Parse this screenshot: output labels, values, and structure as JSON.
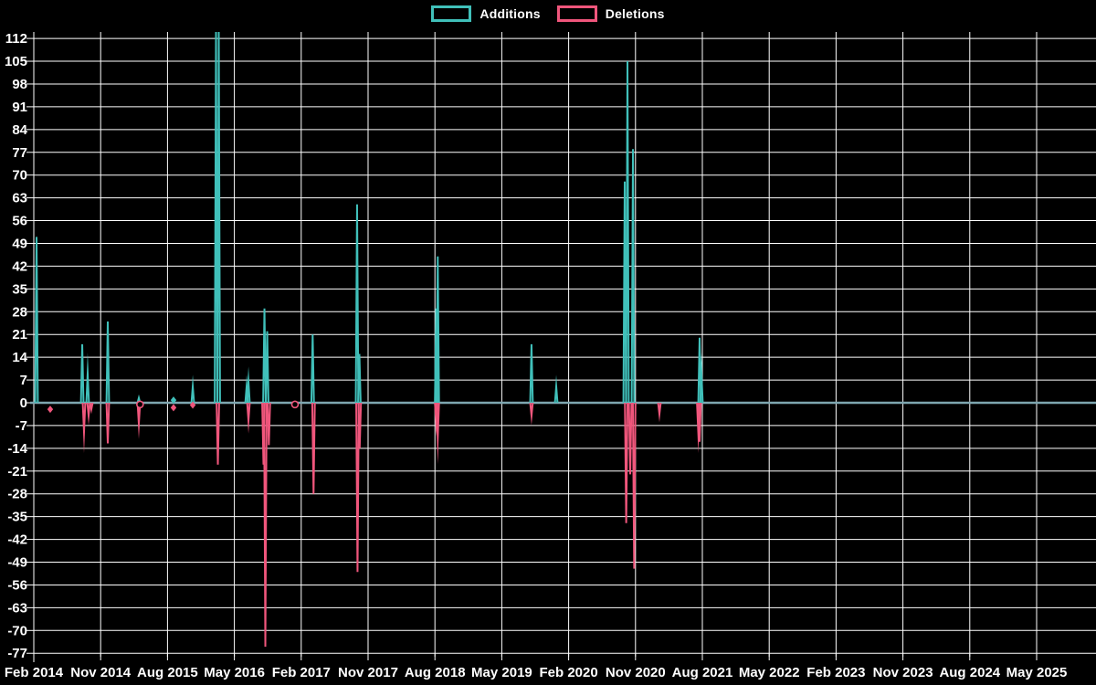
{
  "legend": {
    "additions_label": "Additions",
    "deletions_label": "Deletions"
  },
  "colors": {
    "additions": "#40c0ba",
    "deletions": "#f0567c",
    "zero_line": "#7ea6b0",
    "grid": "#ffffff",
    "background": "#000000",
    "text": "#ffffff"
  },
  "chart_data": {
    "type": "line",
    "title": "",
    "description": "Code additions (teal) and deletions (pink) spikes over time; flat at zero between commits",
    "x_axis": {
      "unit": "months_since_feb_2014",
      "tick_labels": [
        "Feb 2014",
        "Nov 2014",
        "Aug 2015",
        "May 2016",
        "Feb 2017",
        "Nov 2017",
        "Aug 2018",
        "May 2019",
        "Feb 2020",
        "Nov 2020",
        "Aug 2021",
        "May 2022",
        "Feb 2023",
        "Nov 2023",
        "Aug 2024",
        "May 2025"
      ],
      "tick_months": [
        0,
        9,
        18,
        27,
        36,
        45,
        54,
        63,
        72,
        81,
        90,
        99,
        108,
        117,
        126,
        135
      ],
      "range_months": [
        0,
        143
      ]
    },
    "y_axis": {
      "ticks": [
        112,
        105,
        98,
        91,
        84,
        77,
        70,
        63,
        56,
        49,
        42,
        35,
        28,
        21,
        14,
        7,
        0,
        -7,
        -14,
        -21,
        -28,
        -35,
        -42,
        -49,
        -56,
        -63,
        -70,
        -77
      ],
      "range": [
        -77,
        112
      ],
      "grid": true
    },
    "series": [
      {
        "name": "Additions",
        "color_key": "additions",
        "spikes": [
          {
            "m": 0.37,
            "v": 51
          },
          {
            "m": 6.52,
            "v": 18
          },
          {
            "m": 7.25,
            "v": 9
          },
          {
            "m": 9.96,
            "v": 25
          },
          {
            "m": 14.14,
            "v": 1.5
          },
          {
            "m": 21.4,
            "v": 5
          },
          {
            "m": 24.53,
            "v": 114,
            "clipped_at_top": true
          },
          {
            "m": 24.9,
            "v": 114,
            "clipped_at_top": true
          },
          {
            "m": 28.65,
            "v": 5
          },
          {
            "m": 28.9,
            "v": 6.5
          },
          {
            "m": 31.05,
            "v": 29
          },
          {
            "m": 31.42,
            "v": 22
          },
          {
            "m": 37.54,
            "v": 21
          },
          {
            "m": 43.52,
            "v": 61
          },
          {
            "m": 43.83,
            "v": 15
          },
          {
            "m": 54.17,
            "v": 29
          },
          {
            "m": 54.38,
            "v": 45
          },
          {
            "m": 67.0,
            "v": 18
          },
          {
            "m": 70.33,
            "v": 5
          },
          {
            "m": 79.55,
            "v": 68
          },
          {
            "m": 79.92,
            "v": 105
          },
          {
            "m": 80.66,
            "v": 78
          },
          {
            "m": 89.63,
            "v": 20
          },
          {
            "m": 89.88,
            "v": 9
          }
        ]
      },
      {
        "name": "Deletions",
        "color_key": "deletions",
        "spikes": [
          {
            "m": 6.76,
            "v": -9
          },
          {
            "m": 7.38,
            "v": -4
          },
          {
            "m": 7.75,
            "v": -2
          },
          {
            "m": 9.96,
            "v": -12.5
          },
          {
            "m": 14.14,
            "v": -6.5
          },
          {
            "m": 24.78,
            "v": -19
          },
          {
            "m": 28.9,
            "v": -5.5
          },
          {
            "m": 30.92,
            "v": -19
          },
          {
            "m": 31.17,
            "v": -75
          },
          {
            "m": 31.64,
            "v": -13
          },
          {
            "m": 37.66,
            "v": -28
          },
          {
            "m": 43.58,
            "v": -52
          },
          {
            "m": 43.87,
            "v": -14
          },
          {
            "m": 54.17,
            "v": -6
          },
          {
            "m": 54.38,
            "v": -11
          },
          {
            "m": 67.0,
            "v": -4
          },
          {
            "m": 79.75,
            "v": -37
          },
          {
            "m": 80.29,
            "v": -22
          },
          {
            "m": 80.82,
            "v": -51
          },
          {
            "m": 84.22,
            "v": -3.5
          },
          {
            "m": 89.45,
            "v": -9
          },
          {
            "m": 89.63,
            "v": -12
          }
        ]
      }
    ],
    "markers": [
      {
        "type": "diamond",
        "series": "deletions",
        "m": 2.21,
        "v": -2
      },
      {
        "type": "circle",
        "series": "deletions",
        "m": 14.3,
        "v": -0.5
      },
      {
        "type": "diamond",
        "series": "additions",
        "m": 18.81,
        "v": 0.8
      },
      {
        "type": "diamond",
        "series": "deletions",
        "m": 18.81,
        "v": -1.5
      },
      {
        "type": "diamond",
        "series": "deletions",
        "m": 21.4,
        "v": -0.7
      },
      {
        "type": "circle",
        "series": "deletions",
        "m": 35.16,
        "v": -0.5
      }
    ],
    "legend_position": "top-center"
  }
}
